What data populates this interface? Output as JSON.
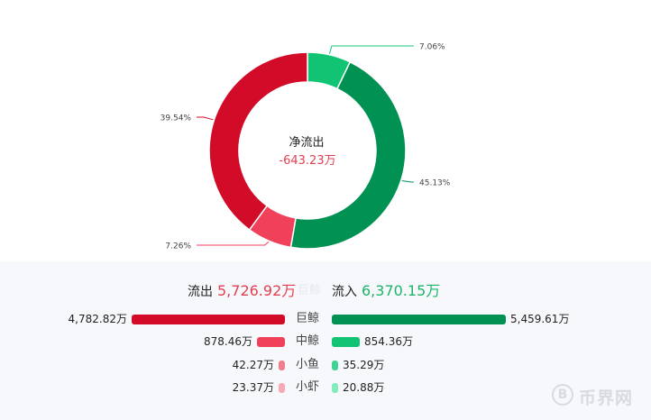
{
  "chart_data": {
    "type": "pie",
    "center_label": "净流出",
    "center_value": "-643.23万",
    "slices": [
      {
        "label": "7.06%",
        "value": 7.06,
        "color": "#10c474"
      },
      {
        "label": "45.13%",
        "value": 45.13,
        "color": "#009153"
      },
      {
        "label": "7.26%",
        "value": 7.26,
        "color": "#f0405a"
      },
      {
        "label": "39.54%",
        "value": 39.54,
        "color": "#d20b29"
      }
    ]
  },
  "summary": {
    "outflow_label": "流出",
    "outflow_value": "5,726.92万",
    "inflow_label": "流入",
    "inflow_value": "6,370.15万",
    "ghost_label": "巨鲸"
  },
  "breakdown": [
    {
      "category": "巨鲸",
      "outflow": "4,782.82万",
      "outflow_num": 4782.82,
      "inflow": "5,459.61万",
      "inflow_num": 5459.61,
      "out_color": "#d20b29",
      "in_color": "#009153"
    },
    {
      "category": "中鲸",
      "outflow": "878.46万",
      "outflow_num": 878.46,
      "inflow": "854.36万",
      "inflow_num": 854.36,
      "out_color": "#f0405a",
      "in_color": "#10c474"
    },
    {
      "category": "小鱼",
      "outflow": "42.27万",
      "outflow_num": 42.27,
      "inflow": "35.29万",
      "inflow_num": 35.29,
      "out_color": "#f17d8e",
      "in_color": "#3dd493"
    },
    {
      "category": "小虾",
      "outflow": "23.37万",
      "outflow_num": 23.37,
      "inflow": "20.88万",
      "inflow_num": 20.88,
      "out_color": "#f7aab5",
      "in_color": "#82ecbb"
    }
  ],
  "watermark": {
    "symbol": "B",
    "text": "币界网"
  }
}
